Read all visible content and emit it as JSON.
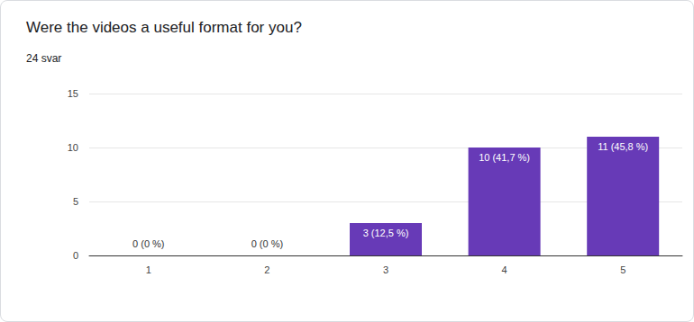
{
  "chart_data": {
    "type": "bar",
    "title": "Were the videos a useful format for you?",
    "subtitle": "24 svar",
    "categories": [
      "1",
      "2",
      "3",
      "4",
      "5"
    ],
    "values": [
      0,
      0,
      3,
      10,
      11
    ],
    "value_labels": [
      "0 (0 %)",
      "0 (0 %)",
      "3 (12,5 %)",
      "10 (41,7 %)",
      "11 (45,8 %)"
    ],
    "color": "#673ab7",
    "ylim": [
      0,
      15
    ],
    "yticks": [
      0,
      5,
      10,
      15
    ],
    "grid": true,
    "data_labels": true
  }
}
